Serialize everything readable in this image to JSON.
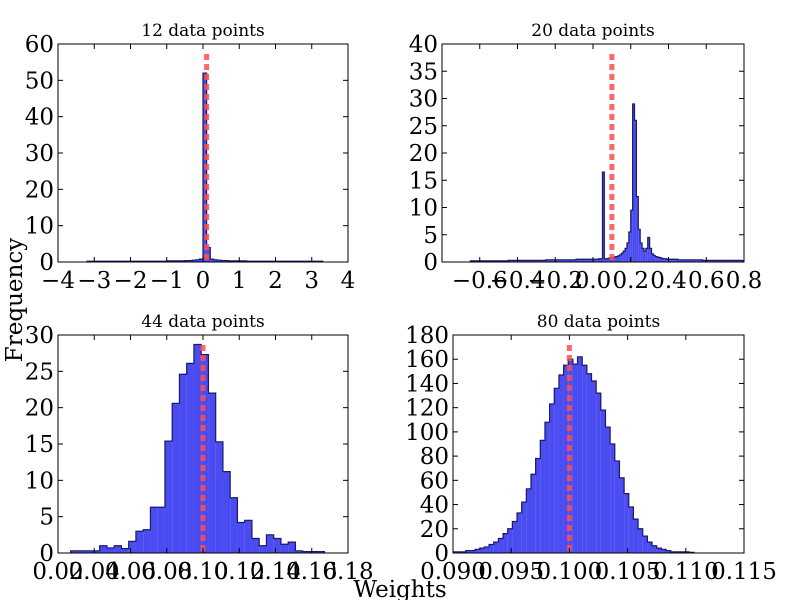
{
  "figure": {
    "xlabel": "Weights",
    "ylabel": "Frequency",
    "colors": {
      "bar_fill": "#2b2bf0",
      "bar_stroke": "#1a1a66",
      "mean_line": "#ff4d4d",
      "axes": "#000000"
    }
  },
  "chart_data": [
    {
      "type": "bar",
      "title": "12 data points",
      "xlim": [
        -4,
        4
      ],
      "ylim": [
        0,
        60
      ],
      "xticks": [
        -4,
        -3,
        -2,
        -1,
        0,
        1,
        2,
        3,
        4
      ],
      "xtick_labels": [
        "−4",
        "−3",
        "−2",
        "−1",
        "0",
        "1",
        "2",
        "3",
        "4"
      ],
      "yticks": [
        0,
        10,
        20,
        30,
        40,
        50,
        60
      ],
      "ytick_labels": [
        "0",
        "10",
        "20",
        "30",
        "40",
        "50",
        "60"
      ],
      "mean_line_x": 0.1,
      "hist": {
        "bin_start": -3.2,
        "bin_width": 0.1,
        "counts": [
          0.2,
          0.2,
          0.2,
          0.2,
          0.2,
          0.2,
          0.2,
          0.2,
          0.2,
          0.2,
          0.2,
          0.2,
          0.2,
          0.2,
          0.2,
          0.2,
          0.2,
          0.2,
          0.2,
          0.2,
          0.2,
          0.2,
          0.3,
          0.3,
          0.3,
          0.3,
          0.3,
          0.4,
          0.4,
          0.5,
          0.6,
          0.8,
          52,
          4,
          0.8,
          0.6,
          0.5,
          0.4,
          0.4,
          0.3,
          0.3,
          0.3,
          0.3,
          0.3,
          0.2,
          0.2,
          0.2,
          0.2,
          0.2,
          0.2,
          0.2,
          0.2,
          0.2,
          0.2,
          0.2,
          0.2,
          0.2,
          0.2,
          0.2,
          0.2,
          0.2,
          0.2,
          0.2,
          0.2,
          0.2
        ]
      }
    },
    {
      "type": "bar",
      "title": "20 data points",
      "xlim": [
        -0.8,
        0.8
      ],
      "ylim": [
        0,
        40
      ],
      "xticks": [
        -0.6,
        -0.4,
        -0.2,
        0.0,
        0.2,
        0.4,
        0.6,
        0.8
      ],
      "xtick_labels": [
        "−0.6",
        "−0.4",
        "−0.2",
        "0.0",
        "0.2",
        "0.4",
        "0.6",
        "0.8"
      ],
      "yticks": [
        0,
        5,
        10,
        15,
        20,
        25,
        30,
        35,
        40
      ],
      "ytick_labels": [
        "0",
        "5",
        "10",
        "15",
        "20",
        "25",
        "30",
        "35",
        "40"
      ],
      "mean_line_x": 0.1,
      "hist": {
        "bin_start": -0.65,
        "bin_width": 0.01,
        "counts": [
          0.2,
          0.2,
          0.2,
          0.2,
          0.2,
          0.2,
          0.2,
          0.2,
          0.2,
          0.2,
          0.2,
          0.2,
          0.2,
          0.2,
          0.2,
          0.2,
          0.2,
          0.2,
          0.2,
          0.2,
          0.3,
          0.3,
          0.3,
          0.3,
          0.3,
          0.3,
          0.3,
          0.3,
          0.3,
          0.3,
          0.3,
          0.3,
          0.3,
          0.3,
          0.3,
          0.3,
          0.3,
          0.3,
          0.3,
          0.3,
          0.4,
          0.4,
          0.4,
          0.4,
          0.4,
          0.4,
          0.4,
          0.4,
          0.4,
          0.4,
          0.4,
          0.4,
          0.4,
          0.4,
          0.4,
          0.4,
          0.5,
          0.5,
          0.5,
          0.5,
          0.5,
          0.5,
          0.5,
          0.5,
          0.5,
          0.5,
          0.5,
          0.5,
          0.6,
          0.6,
          16.5,
          0.6,
          0.6,
          0.7,
          0.8,
          0.8,
          0.9,
          1.0,
          1.1,
          1.3,
          1.6,
          2.0,
          2.5,
          3.5,
          5.5,
          9.5,
          29,
          26,
          12,
          6,
          3.5,
          2.5,
          2.0,
          2.5,
          4.5,
          2.5,
          1.5,
          1.2,
          1.0,
          0.9,
          0.8,
          0.7,
          0.6,
          0.6,
          0.5,
          0.5,
          0.5,
          0.5,
          0.5,
          0.5,
          0.4,
          0.4,
          0.4,
          0.4,
          0.4,
          0.4,
          0.4,
          0.4,
          0.4,
          0.4,
          0.4,
          0.4,
          0.4,
          0.3,
          0.3,
          0.3,
          0.3,
          0.3,
          0.3,
          0.3,
          0.3,
          0.3,
          0.3,
          0.3,
          0.3,
          0.3,
          0.3,
          0.3,
          0.3,
          0.3,
          0.3,
          0.3,
          0.3,
          0.3,
          0.2,
          0.2,
          0.2,
          0.2,
          0.2,
          0.2,
          0.2,
          0.2,
          0.2,
          0.2,
          0.2,
          0.2,
          0.2,
          0.2,
          0.2,
          0.2,
          0.2,
          0.2,
          0.2,
          0.2,
          0.2,
          0.2,
          0.2,
          0.2,
          0.2,
          0.2,
          0.2,
          0.2,
          0.2,
          0.2
        ]
      }
    },
    {
      "type": "bar",
      "title": "44 data points",
      "xlim": [
        0.02,
        0.18
      ],
      "ylim": [
        0,
        30
      ],
      "xticks": [
        0.02,
        0.04,
        0.06,
        0.08,
        0.1,
        0.12,
        0.14,
        0.16,
        0.18
      ],
      "xtick_labels": [
        "0.02",
        "0.04",
        "0.06",
        "0.08",
        "0.10",
        "0.12",
        "0.14",
        "0.16",
        "0.18"
      ],
      "yticks": [
        0,
        5,
        10,
        15,
        20,
        25,
        30
      ],
      "ytick_labels": [
        "0",
        "5",
        "10",
        "15",
        "20",
        "25",
        "30"
      ],
      "mean_line_x": 0.1,
      "hist": {
        "bin_start": 0.027,
        "bin_width": 0.004,
        "counts": [
          0.3,
          0.3,
          0.3,
          0.3,
          1.0,
          0.7,
          1.0,
          0.6,
          1.6,
          3.0,
          3.2,
          6.3,
          6.3,
          15.4,
          20.6,
          24.6,
          26.1,
          28.7,
          27.3,
          22.0,
          15.3,
          11.2,
          7.6,
          4.2,
          4.5,
          2.0,
          1.0,
          2.5,
          2.0,
          1.2,
          1.5,
          0.3,
          0.2,
          0.2,
          0.2
        ]
      }
    },
    {
      "type": "bar",
      "title": "80 data points",
      "xlim": [
        0.09,
        0.115
      ],
      "ylim": [
        0,
        180
      ],
      "xticks": [
        0.09,
        0.095,
        0.1,
        0.105,
        0.11,
        0.115
      ],
      "xtick_labels": [
        "0.090",
        "0.095",
        "0.100",
        "0.105",
        "0.110",
        "0.115"
      ],
      "yticks": [
        0,
        20,
        40,
        60,
        80,
        100,
        120,
        140,
        160,
        180
      ],
      "ytick_labels": [
        "0",
        "20",
        "40",
        "60",
        "80",
        "100",
        "120",
        "140",
        "160",
        "180"
      ],
      "mean_line_x": 0.1,
      "hist": {
        "bin_start": 0.0899,
        "bin_width": 0.0004,
        "counts": [
          1,
          1,
          1,
          2,
          2,
          3,
          4,
          5,
          7,
          9,
          12,
          16,
          20,
          26,
          33,
          42,
          53,
          65,
          78,
          93,
          108,
          123,
          136,
          147,
          155,
          160,
          156,
          162,
          155,
          148,
          142,
          132,
          118,
          104,
          90,
          76,
          62,
          49,
          38,
          28,
          20,
          14,
          9,
          6,
          4,
          3,
          2,
          1,
          1,
          1,
          1,
          0.5
        ]
      }
    }
  ]
}
